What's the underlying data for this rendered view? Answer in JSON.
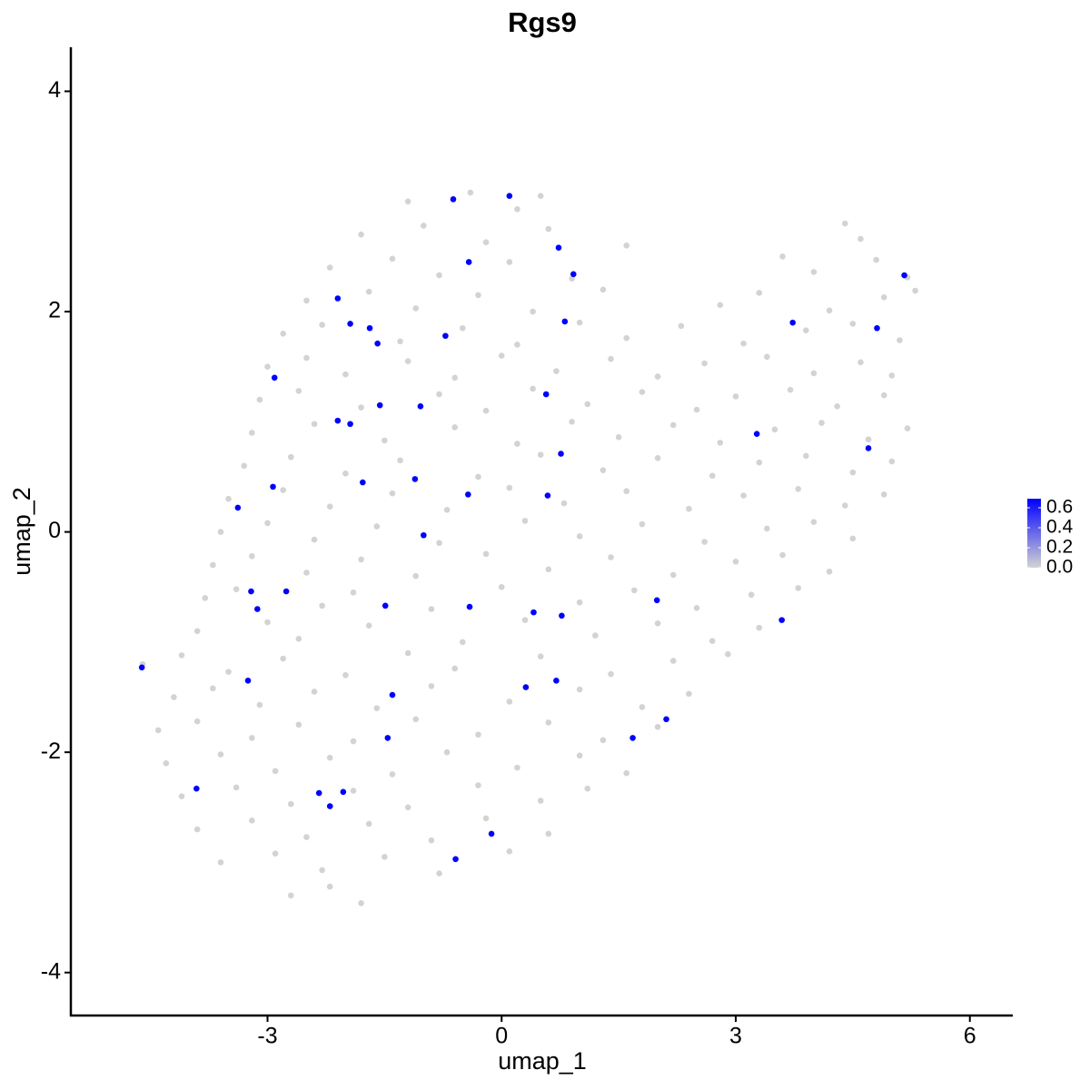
{
  "chart_data": {
    "type": "scatter",
    "title": "Rgs9",
    "x_label": "umap_1",
    "y_label": "umap_2",
    "xlim": [
      -5.52,
      6.55
    ],
    "ylim": [
      -4.39,
      4.4
    ],
    "xticks": [
      -3,
      0,
      3,
      6
    ],
    "yticks": [
      -4,
      -2,
      0,
      2,
      4
    ],
    "point_radius_note_free": null,
    "x": [
      -1.2,
      -0.4,
      0.2,
      0.5,
      -1.8,
      -1.0,
      -0.2,
      0.6,
      1.6,
      4.4,
      4.6,
      -2.2,
      -1.4,
      -0.8,
      0.1,
      0.9,
      3.6,
      4.0,
      4.8,
      5.2,
      -2.5,
      -1.7,
      -1.1,
      -0.3,
      0.4,
      1.3,
      2.8,
      3.3,
      4.2,
      4.9,
      5.3,
      -2.8,
      -2.3,
      -1.3,
      -0.5,
      0.2,
      1.0,
      1.6,
      2.3,
      3.1,
      3.9,
      4.5,
      5.1,
      -3.0,
      -2.5,
      -2.0,
      -1.2,
      -0.6,
      0.0,
      0.7,
      1.4,
      2.0,
      2.6,
      3.4,
      4.0,
      4.6,
      5.0,
      -3.1,
      -2.6,
      -1.8,
      -0.8,
      -0.2,
      0.4,
      1.1,
      1.8,
      2.5,
      3.0,
      3.7,
      4.3,
      4.9,
      -3.2,
      -2.4,
      -1.5,
      -0.6,
      0.2,
      0.9,
      1.5,
      2.2,
      2.8,
      3.5,
      4.1,
      4.7,
      5.2,
      -3.3,
      -2.7,
      -2.0,
      -1.3,
      -0.3,
      0.5,
      1.3,
      2.0,
      2.7,
      3.3,
      3.9,
      4.5,
      5.0,
      -3.5,
      -2.8,
      -2.2,
      -1.4,
      -0.7,
      0.1,
      0.8,
      1.6,
      2.4,
      3.1,
      3.8,
      4.4,
      4.9,
      -3.6,
      -3.0,
      -2.4,
      -1.6,
      -0.8,
      0.3,
      1.0,
      1.8,
      2.6,
      3.4,
      4.0,
      4.5,
      -3.7,
      -3.2,
      -2.5,
      -1.8,
      -1.1,
      -0.2,
      0.6,
      1.4,
      2.2,
      3.0,
      3.6,
      4.2,
      -3.8,
      -3.4,
      -2.3,
      -1.9,
      -0.9,
      0.0,
      1.0,
      1.7,
      2.5,
      3.2,
      3.8,
      -3.9,
      -3.0,
      -2.6,
      -1.7,
      -0.5,
      0.3,
      1.2,
      2.0,
      2.7,
      3.3,
      -4.6,
      -4.1,
      -3.5,
      -2.8,
      -2.0,
      -1.2,
      -0.6,
      0.5,
      1.4,
      2.2,
      2.9,
      -4.2,
      -3.7,
      -3.1,
      -2.4,
      -1.6,
      -0.9,
      0.1,
      1.0,
      1.8,
      2.4,
      -4.4,
      -3.9,
      -3.2,
      -2.6,
      -1.9,
      -1.1,
      -0.3,
      0.6,
      1.3,
      2.0,
      -4.3,
      -3.6,
      -2.9,
      -2.2,
      -1.4,
      -0.7,
      0.2,
      1.0,
      1.6,
      -4.1,
      -3.4,
      -2.7,
      -1.9,
      -1.2,
      -0.3,
      0.5,
      1.1,
      -3.9,
      -3.2,
      -2.5,
      -1.7,
      -0.9,
      -0.2,
      0.6,
      -3.6,
      -2.9,
      -2.3,
      -1.5,
      -0.8,
      0.1,
      -2.7,
      -2.2,
      -1.8,
      -0.62,
      0.1,
      0.73,
      -0.42,
      0.92,
      5.16,
      -2.1,
      -1.94,
      -1.69,
      -1.59,
      0.81,
      -0.72,
      3.73,
      4.81,
      -2.91,
      -1.56,
      -1.04,
      0.57,
      -2.1,
      -1.94,
      3.27,
      4.7,
      0.76,
      -1.11,
      -1.78,
      -2.93,
      -0.43,
      0.59,
      -3.38,
      -1.0,
      -3.21,
      -2.76,
      -3.13,
      -1.49,
      -0.41,
      0.41,
      0.77,
      1.99,
      3.59,
      -4.61,
      -3.25,
      0.31,
      0.7,
      -1.4,
      2.11,
      1.68,
      -1.46,
      -3.91,
      -2.34,
      -2.03,
      -2.2,
      -0.13,
      -0.59
    ],
    "y": [
      3.0,
      3.08,
      2.93,
      3.05,
      2.7,
      2.78,
      2.63,
      2.75,
      2.6,
      2.8,
      2.66,
      2.4,
      2.48,
      2.33,
      2.45,
      2.3,
      2.5,
      2.36,
      2.47,
      2.31,
      2.1,
      2.18,
      2.03,
      2.15,
      2.0,
      2.2,
      2.06,
      2.17,
      2.01,
      2.13,
      2.19,
      1.8,
      1.88,
      1.73,
      1.85,
      1.7,
      1.9,
      1.76,
      1.87,
      1.71,
      1.83,
      1.89,
      1.74,
      1.5,
      1.58,
      1.43,
      1.55,
      1.4,
      1.6,
      1.46,
      1.57,
      1.41,
      1.53,
      1.59,
      1.44,
      1.54,
      1.42,
      1.2,
      1.28,
      1.13,
      1.25,
      1.1,
      1.3,
      1.16,
      1.27,
      1.11,
      1.23,
      1.29,
      1.14,
      1.24,
      0.9,
      0.98,
      0.83,
      0.95,
      0.8,
      1.0,
      0.86,
      0.97,
      0.81,
      0.93,
      0.99,
      0.84,
      0.94,
      0.6,
      0.68,
      0.53,
      0.65,
      0.5,
      0.7,
      0.56,
      0.67,
      0.51,
      0.63,
      0.69,
      0.54,
      0.64,
      0.3,
      0.38,
      0.23,
      0.35,
      0.2,
      0.4,
      0.26,
      0.37,
      0.21,
      0.33,
      0.39,
      0.24,
      0.34,
      0,
      0.08,
      -0.07,
      0.05,
      -0.1,
      0.1,
      -0.04,
      0.07,
      -0.09,
      0.03,
      0.09,
      -0.06,
      -0.3,
      -0.22,
      -0.37,
      -0.25,
      -0.4,
      -0.2,
      -0.34,
      -0.23,
      -0.39,
      -0.27,
      -0.21,
      -0.36,
      -0.6,
      -0.52,
      -0.67,
      -0.55,
      -0.7,
      -0.5,
      -0.64,
      -0.53,
      -0.69,
      -0.57,
      -0.51,
      -0.9,
      -0.82,
      -0.97,
      -0.85,
      -1.0,
      -0.8,
      -0.94,
      -0.83,
      -0.99,
      -0.87,
      -1.2,
      -1.12,
      -1.27,
      -1.15,
      -1.3,
      -1.1,
      -1.24,
      -1.13,
      -1.29,
      -1.17,
      -1.11,
      -1.5,
      -1.42,
      -1.57,
      -1.45,
      -1.6,
      -1.4,
      -1.54,
      -1.43,
      -1.59,
      -1.47,
      -1.8,
      -1.72,
      -1.87,
      -1.75,
      -1.9,
      -1.7,
      -1.84,
      -1.73,
      -1.89,
      -1.77,
      -2.1,
      -2.02,
      -2.17,
      -2.05,
      -2.2,
      -2.0,
      -2.14,
      -2.03,
      -2.19,
      -2.4,
      -2.32,
      -2.47,
      -2.35,
      -2.5,
      -2.3,
      -2.44,
      -2.33,
      -2.7,
      -2.62,
      -2.77,
      -2.65,
      -2.8,
      -2.6,
      -2.74,
      -3.0,
      -2.92,
      -3.07,
      -2.95,
      -3.1,
      -2.9,
      -3.3,
      -3.22,
      -3.37,
      3.02,
      3.05,
      2.58,
      2.45,
      2.34,
      2.33,
      2.12,
      1.89,
      1.85,
      1.71,
      1.91,
      1.78,
      1.9,
      1.85,
      1.4,
      1.15,
      1.14,
      1.25,
      1.01,
      0.98,
      0.89,
      0.76,
      0.71,
      0.48,
      0.45,
      0.41,
      0.34,
      0.33,
      0.22,
      -0.03,
      -0.54,
      -0.54,
      -0.7,
      -0.67,
      -0.68,
      -0.73,
      -0.76,
      -0.62,
      -0.8,
      -1.23,
      -1.35,
      -1.41,
      -1.35,
      -1.48,
      -1.7,
      -1.87,
      -1.87,
      -2.33,
      -2.37,
      -2.36,
      -2.49,
      -2.74,
      -2.97
    ],
    "values": [
      0,
      0,
      0,
      0,
      0,
      0,
      0,
      0,
      0,
      0,
      0,
      0,
      0,
      0,
      0,
      0,
      0,
      0,
      0,
      0,
      0,
      0,
      0,
      0,
      0,
      0,
      0,
      0,
      0,
      0,
      0,
      0,
      0,
      0,
      0,
      0,
      0,
      0,
      0,
      0,
      0,
      0,
      0,
      0,
      0,
      0,
      0,
      0,
      0,
      0,
      0,
      0,
      0,
      0,
      0,
      0,
      0,
      0,
      0,
      0,
      0,
      0,
      0,
      0,
      0,
      0,
      0,
      0,
      0,
      0,
      0,
      0,
      0,
      0,
      0,
      0,
      0,
      0,
      0,
      0,
      0,
      0,
      0,
      0,
      0,
      0,
      0,
      0,
      0,
      0,
      0,
      0,
      0,
      0,
      0,
      0,
      0,
      0,
      0,
      0,
      0,
      0,
      0,
      0,
      0,
      0,
      0,
      0,
      0,
      0,
      0,
      0,
      0,
      0,
      0,
      0,
      0,
      0,
      0,
      0,
      0,
      0,
      0,
      0,
      0,
      0,
      0,
      0,
      0,
      0,
      0,
      0,
      0,
      0,
      0,
      0,
      0,
      0,
      0,
      0,
      0,
      0,
      0,
      0,
      0,
      0,
      0,
      0,
      0,
      0,
      0,
      0,
      0,
      0,
      0,
      0,
      0,
      0,
      0,
      0,
      0,
      0,
      0,
      0,
      0,
      0,
      0,
      0,
      0,
      0,
      0,
      0,
      0,
      0,
      0,
      0,
      0,
      0,
      0,
      0,
      0,
      0,
      0,
      0,
      0,
      0,
      0,
      0,
      0,
      0,
      0,
      0,
      0,
      0,
      0,
      0,
      0,
      0,
      0,
      0,
      0,
      0,
      0,
      0,
      0,
      0,
      0,
      0,
      0,
      0,
      0,
      0,
      0,
      0,
      0,
      0,
      0,
      0,
      0.69,
      0.69,
      0.69,
      0.69,
      0.69,
      0.69,
      0.69,
      0.69,
      0.69,
      0.69,
      0.69,
      0.69,
      0.69,
      0.69,
      0.69,
      0.69,
      0.69,
      0.69,
      0.69,
      0.69,
      0.69,
      0.69,
      0.69,
      0.69,
      0.69,
      0.69,
      0.69,
      0.69,
      0.69,
      0.69,
      0.69,
      0.69,
      0.69,
      0.69,
      0.69,
      0.69,
      0.69,
      0.69,
      0.69,
      0.69,
      0.69,
      0.69,
      0.69,
      0.69,
      0.69,
      0.69,
      0.69,
      0.69,
      0.69,
      0.69,
      0.69,
      0.69,
      0.69
    ],
    "color_scale": {
      "low": "#d3d3d3",
      "high": "#0000ff",
      "limits": [
        0,
        0.69
      ],
      "ticks": [
        {
          "value": 0,
          "label": "0.0"
        },
        0.2,
        0.4,
        0.6
      ]
    }
  }
}
